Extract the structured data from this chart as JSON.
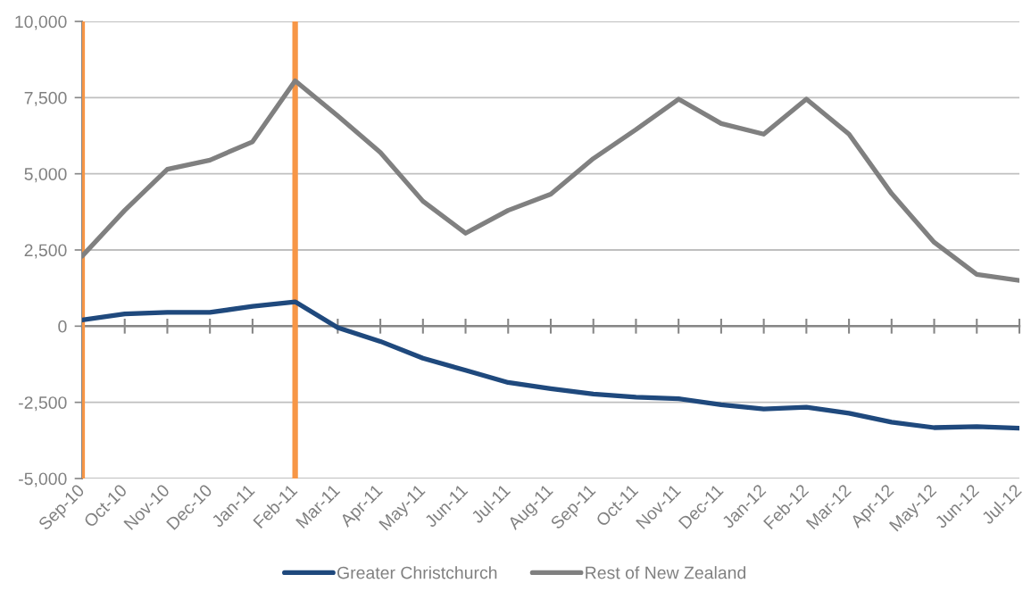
{
  "chart_data": {
    "type": "line",
    "categories": [
      "Sep-10",
      "Oct-10",
      "Nov-10",
      "Dec-10",
      "Jan-11",
      "Feb-11",
      "Mar-11",
      "Apr-11",
      "May-11",
      "Jun-11",
      "Jul-11",
      "Aug-11",
      "Sep-11",
      "Oct-11",
      "Nov-11",
      "Dec-11",
      "Jan-12",
      "Feb-12",
      "Mar-12",
      "Apr-12",
      "May-12",
      "Jun-12",
      "Jul-12"
    ],
    "series": [
      {
        "name": "Greater Christchurch",
        "color": "#1f497d",
        "values": [
          200,
          400,
          450,
          450,
          650,
          800,
          -50,
          -500,
          -1050,
          -1450,
          -1850,
          -2050,
          -2230,
          -2330,
          -2380,
          -2580,
          -2720,
          -2660,
          -2860,
          -3150,
          -3330,
          -3300,
          -3350
        ]
      },
      {
        "name": "Rest of New Zealand",
        "color": "#808080",
        "values": [
          2300,
          3800,
          5150,
          5450,
          6050,
          8050,
          6900,
          5700,
          4100,
          3050,
          3800,
          4330,
          5500,
          6450,
          7450,
          6650,
          6300,
          7450,
          6300,
          4350,
          2750,
          1700,
          1500
        ]
      }
    ],
    "ylim": [
      -5000,
      10000
    ],
    "yticks": [
      {
        "value": -5000,
        "label": "-5,000"
      },
      {
        "value": -2500,
        "label": "-2,500"
      },
      0,
      {
        "value": 2500,
        "label": "2,500"
      },
      {
        "value": 5000,
        "label": "5,000"
      },
      {
        "value": 7500,
        "label": "7,500"
      },
      {
        "value": 10000,
        "label": "10,000"
      }
    ],
    "grid": "y",
    "legend": "bottom",
    "line_style": "solid",
    "ref_lines": [
      {
        "axis": "x",
        "value": "Sep-10",
        "color": "#f79646"
      },
      {
        "axis": "x",
        "value": "Feb-11",
        "color": "#f79646"
      }
    ]
  }
}
